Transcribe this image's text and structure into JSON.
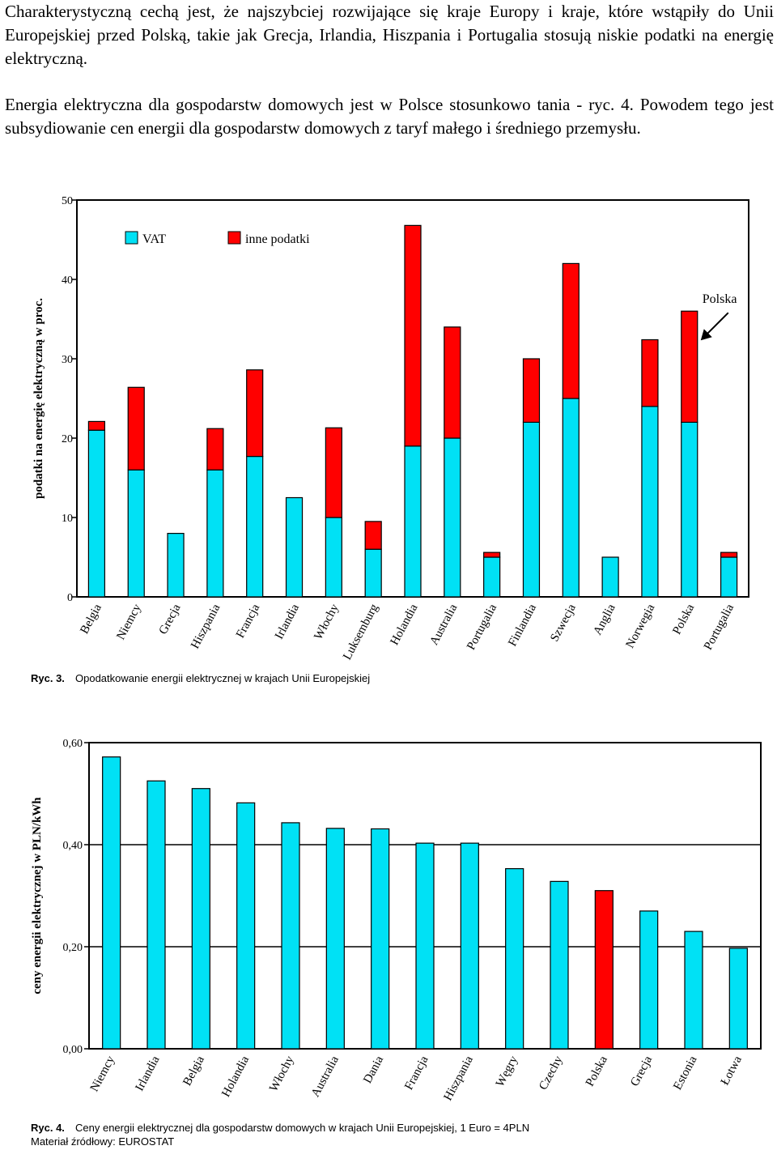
{
  "text": {
    "paragraph1": "Charakterystyczną cechą jest, że najszybciej rozwijające się kraje Europy i kraje, które wstąpiły do Unii Europejskiej przed Polską, takie jak Grecja, Irlandia, Hiszpania i Portugalia stosują niskie podatki na energię elektryczną.",
    "paragraph2": "Energia elektryczna dla gospodarstw domowych jest w Polsce stosunkowo tania - ryc. 4. Powodem tego jest subsydiowanie cen energii dla gospodarstw domowych z taryf małego i średniego przemysłu."
  },
  "colors": {
    "vat": "#00E1F5",
    "other": "#FF0000",
    "highlight": "#FF0000"
  },
  "chart_data": [
    {
      "type": "bar",
      "stacked": true,
      "caption_label": "Ryc. 3.",
      "caption_text": "Opodatkowanie energii elektrycznej w krajach Unii Europejskiej",
      "ylabel": "podatki na energię elektryczną w proc.",
      "ylim": [
        0,
        50
      ],
      "yticks": [
        "0",
        "10",
        "20",
        "30",
        "40",
        "50"
      ],
      "ytick_values": [
        0,
        10,
        20,
        30,
        40,
        50
      ],
      "legend": [
        {
          "name": "VAT",
          "color": "#00E1F5"
        },
        {
          "name": "inne podatki",
          "color": "#FF0000"
        }
      ],
      "annotation": {
        "text": "Polska",
        "target": "Polska"
      },
      "categories": [
        "Belgia",
        "Niemcy",
        "Grecja",
        "Hiszpania",
        "Francja",
        "Irlandia",
        "Włochy",
        "Luksemburg",
        "Holandia",
        "Australia",
        "Portugalia",
        "Finlandia",
        "Szwecja",
        "Anglia",
        "Norwegia",
        "Polska",
        "Portugalia"
      ],
      "series": [
        {
          "name": "VAT",
          "values": [
            21,
            16,
            8,
            16,
            17.7,
            12.5,
            10,
            6,
            19,
            20,
            5,
            22,
            25,
            5,
            24,
            22,
            5
          ]
        },
        {
          "name": "inne podatki",
          "values": [
            1.1,
            10.4,
            0,
            5.2,
            10.9,
            0,
            11.3,
            3.5,
            27.8,
            14,
            0.6,
            8,
            17,
            0,
            8.4,
            14,
            0.6
          ]
        }
      ]
    },
    {
      "type": "bar",
      "caption_label": "Ryc. 4.",
      "caption_text": "Ceny energii elektrycznej dla gospodarstw domowych w krajach Unii Europejskiej, 1 Euro = 4PLN",
      "source_text": "Materiał źródłowy: EUROSTAT",
      "ylabel": "ceny energii elektrycznej w PLN/kWh",
      "ylim": [
        0,
        0.6
      ],
      "yticks": [
        "0,00",
        "0,20",
        "0,40",
        "0,60"
      ],
      "ytick_values": [
        0,
        0.2,
        0.4,
        0.6
      ],
      "highlight": "Polska",
      "categories": [
        "Niemcy",
        "Irlandia",
        "Belgia",
        "Holandia",
        "Włochy",
        "Australia",
        "Dania",
        "Francja",
        "Hiszpania",
        "Węgry",
        "Czechy",
        "Polska",
        "Grecja",
        "Estonia",
        "Łotwa"
      ],
      "values": [
        0.572,
        0.525,
        0.51,
        0.482,
        0.443,
        0.432,
        0.431,
        0.403,
        0.403,
        0.353,
        0.328,
        0.31,
        0.27,
        0.23,
        0.197
      ]
    }
  ]
}
